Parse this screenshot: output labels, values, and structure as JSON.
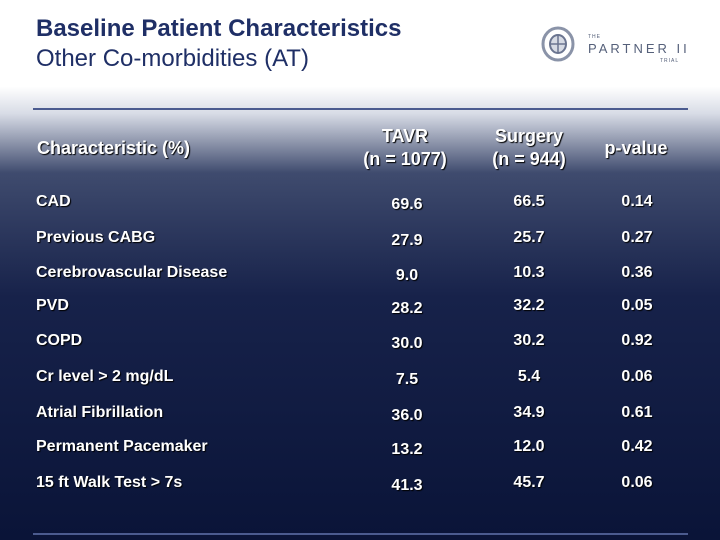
{
  "title": {
    "line1": "Baseline Patient Characteristics",
    "line2": "Other Co-morbidities (AT)"
  },
  "logo": {
    "small_top": "THE",
    "name": "PARTNER II",
    "small_bottom": "TRIAL"
  },
  "colors": {
    "title": "#1f2f66",
    "background_dark": "#0a1438",
    "text": "#ffffff"
  },
  "table": {
    "headers": {
      "characteristic": "Characteristic  (%)",
      "tavr_line1": "TAVR",
      "tavr_line2": "(n = 1077)",
      "surgery_line1": "Surgery",
      "surgery_line2": "(n = 944)",
      "pvalue": "p-value"
    },
    "rows": [
      {
        "label": "CAD",
        "tavr": "69.6",
        "surgery": "66.5",
        "p": "0.14"
      },
      {
        "label": "Previous CABG",
        "tavr": "27.9",
        "surgery": "25.7",
        "p": "0.27"
      },
      {
        "label": "Cerebrovascular Disease",
        "tavr": "9.0",
        "surgery": "10.3",
        "p": "0.36"
      },
      {
        "label": "PVD",
        "tavr": "28.2",
        "surgery": "32.2",
        "p": "0.05"
      },
      {
        "label": "COPD",
        "tavr": "30.0",
        "surgery": "30.2",
        "p": "0.92"
      },
      {
        "label": "Cr level > 2 mg/dL",
        "tavr": "7.5",
        "surgery": "5.4",
        "p": "0.06"
      },
      {
        "label": "Atrial Fibrillation",
        "tavr": "36.0",
        "surgery": "34.9",
        "p": "0.61"
      },
      {
        "label": "Permanent Pacemaker",
        "tavr": "13.2",
        "surgery": "12.0",
        "p": "0.42"
      },
      {
        "label": "15 ft Walk Test > 7s",
        "tavr": "41.3",
        "surgery": "45.7",
        "p": "0.06"
      }
    ]
  }
}
